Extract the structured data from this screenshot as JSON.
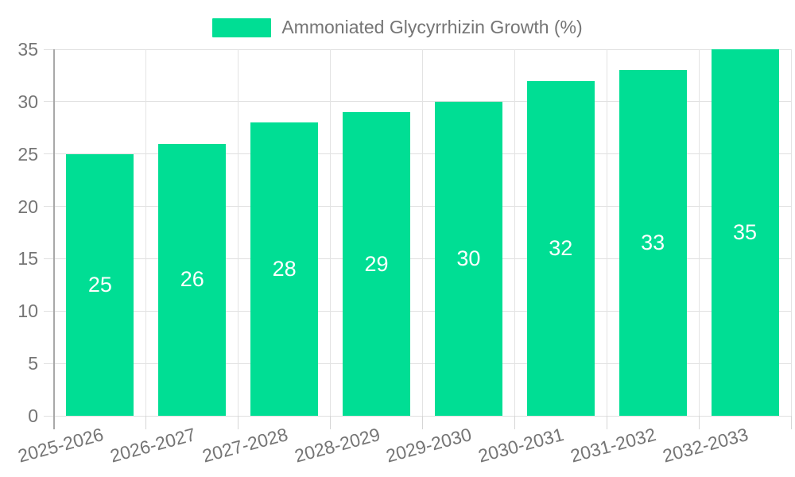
{
  "legend": {
    "label": "Ammoniated Glycyrrhizin Growth (%)"
  },
  "colors": {
    "bar": "#00de94",
    "grid_h": "#e0e0e0",
    "grid_v": "#e3e3e3",
    "axis_line": "#a8a8a8",
    "tick_text": "#757575",
    "bar_label_text": "#ffffff",
    "background": "#ffffff"
  },
  "chart_data": {
    "type": "bar",
    "title": "",
    "categories": [
      "2025-2026",
      "2026-2027",
      "2027-2028",
      "2028-2029",
      "2029-2030",
      "2030-2031",
      "2031-2032",
      "2032-2033"
    ],
    "series": [
      {
        "name": "Ammoniated Glycyrrhizin Growth (%)",
        "values": [
          25,
          26,
          28,
          29,
          30,
          32,
          33,
          35
        ]
      }
    ],
    "bar_value_labels": [
      25,
      26,
      28,
      29,
      30,
      32,
      33,
      35
    ],
    "xlabel": "",
    "ylabel": "",
    "ylim": [
      0,
      35
    ],
    "yticks": [
      0,
      5,
      10,
      15,
      20,
      25,
      30,
      35
    ],
    "grid": true,
    "x_label_rotation_deg": -15,
    "legend_position": "top-center"
  }
}
